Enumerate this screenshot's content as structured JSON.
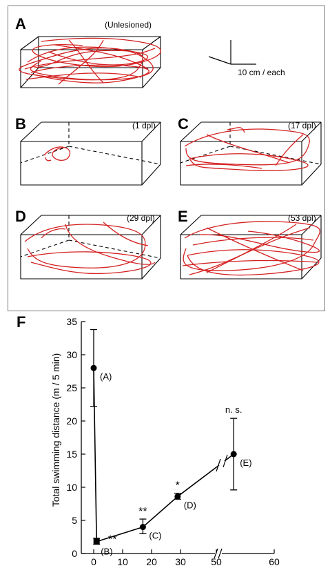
{
  "panels": [
    {
      "id": "A",
      "condition": "(Unlesioned)",
      "box": "solid"
    },
    {
      "id": "B",
      "condition": "(1 dpl)",
      "box": "dashed-back"
    },
    {
      "id": "C",
      "condition": "(17 dpl)",
      "box": "dashed-back"
    },
    {
      "id": "D",
      "condition": "(29 dpl)",
      "box": "dashed-back"
    },
    {
      "id": "E",
      "condition": "(53 dpl)",
      "box": "dashed-back"
    }
  ],
  "scale_bar": {
    "label": "10 cm / each"
  },
  "colors": {
    "trace": "#d42020",
    "line": "#000000",
    "frame": "#666666"
  },
  "chart_data": {
    "panel_label": "F",
    "type": "line",
    "ylabel": "Total swimming distance (m / 5 min)",
    "xlabel": "",
    "ylim": [
      0,
      35
    ],
    "xlim": [
      0,
      60
    ],
    "yticks": [
      0,
      5,
      10,
      15,
      20,
      25,
      30,
      35
    ],
    "xticks": [
      0,
      10,
      20,
      30,
      50,
      60
    ],
    "axis_break": "between 30 and 50",
    "points": [
      {
        "x": 0,
        "y": 28,
        "err_low": 22.2,
        "err_high": 33.8,
        "label": "(A)",
        "sig": ""
      },
      {
        "x": 1,
        "y": 1.8,
        "err_low": 1.4,
        "err_high": 2.3,
        "label": "(B)",
        "sig": "**"
      },
      {
        "x": 17,
        "y": 4,
        "err_low": 3,
        "err_high": 5.2,
        "label": "(C)",
        "sig": "**"
      },
      {
        "x": 29,
        "y": 8.6,
        "err_low": 8.2,
        "err_high": 9.1,
        "label": "(D)",
        "sig": "*"
      },
      {
        "x": 53,
        "y": 15,
        "err_low": 9.6,
        "err_high": 20.4,
        "label": "(E)",
        "sig": "n. s."
      }
    ]
  }
}
